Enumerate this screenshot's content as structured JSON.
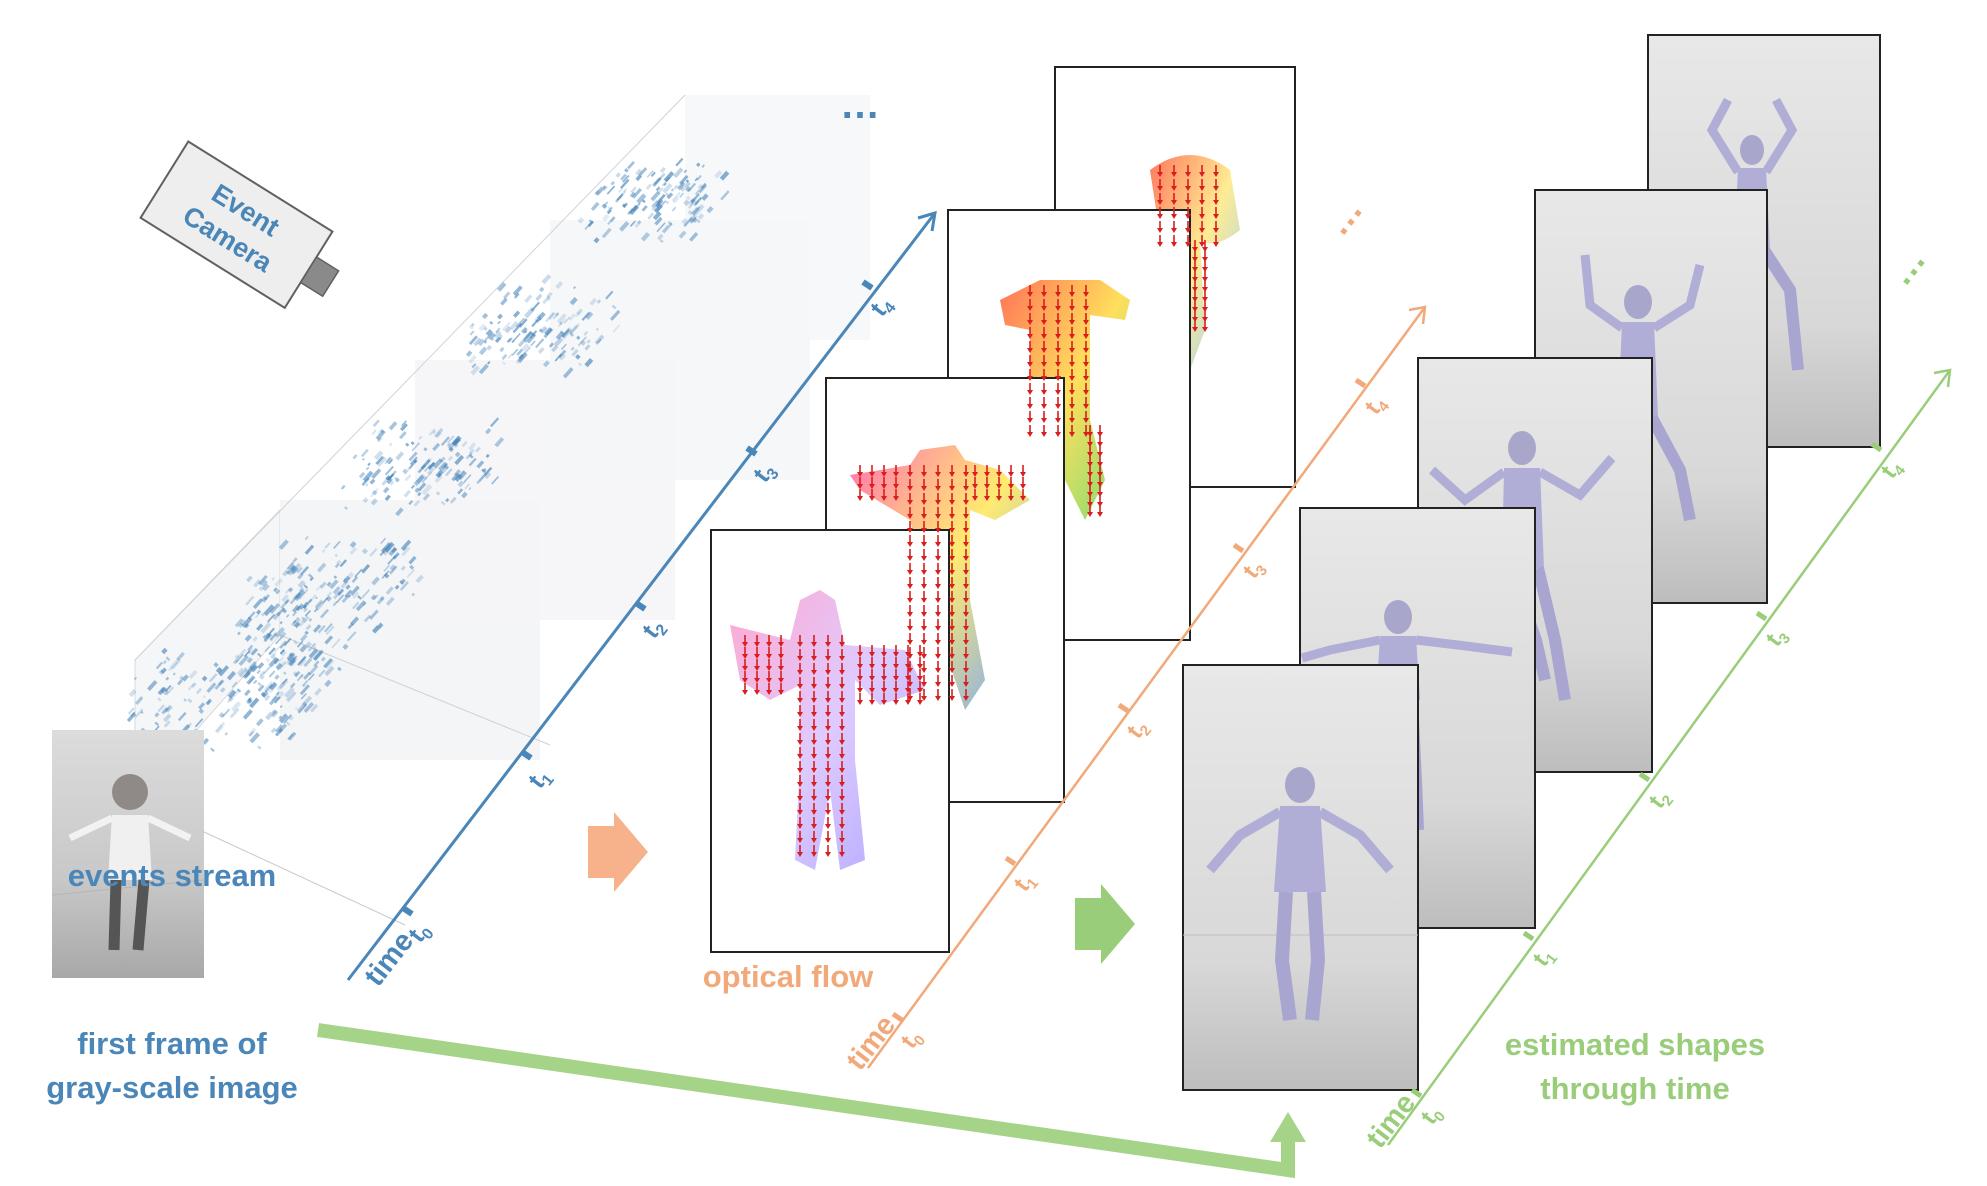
{
  "colors": {
    "events": "#4a86b8",
    "flow": "#f2a97a",
    "shapes": "#9acd7a",
    "camera_fill": "#eeeeee",
    "event_points": "#3f7fb6"
  },
  "camera": {
    "line1": "Event",
    "line2": "Camera"
  },
  "event_axis": {
    "axis_label": "time",
    "ticks": [
      "t",
      "t",
      "t",
      "t",
      "t"
    ],
    "tick_subs": [
      "0",
      "1",
      "2",
      "3",
      "4"
    ],
    "ellipsis": "…"
  },
  "flow_axis": {
    "axis_label": "time",
    "ticks": [
      "t",
      "t",
      "t",
      "t",
      "t"
    ],
    "tick_subs": [
      "0",
      "1",
      "2",
      "3",
      "4"
    ],
    "ellipsis": "…",
    "caption": "optical flow"
  },
  "shape_axis": {
    "axis_label": "time",
    "ticks": [
      "t",
      "t",
      "t",
      "t",
      "t"
    ],
    "tick_subs": [
      "0",
      "1",
      "2",
      "3",
      "4"
    ],
    "ellipsis": "…",
    "caption_line1": "estimated shapes",
    "caption_line2": "through time"
  },
  "captions": {
    "events_stream": "events stream",
    "first_frame_line1": "first frame of",
    "first_frame_line2": "gray-scale image"
  }
}
